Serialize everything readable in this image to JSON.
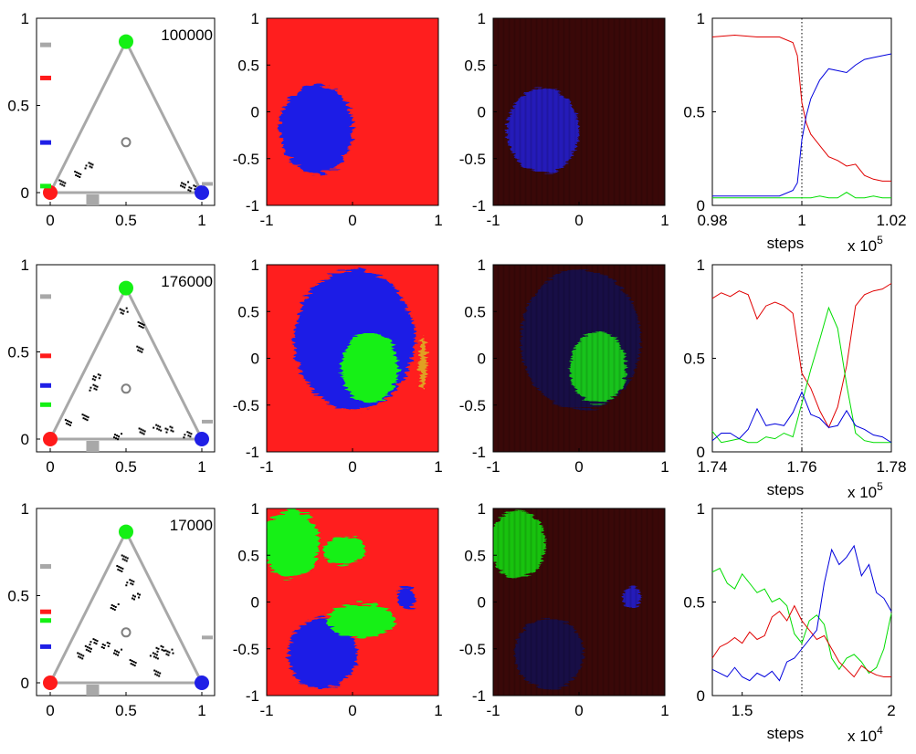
{
  "colors": {
    "red": "#ff2020",
    "green": "#22ee22",
    "blue": "#1a2bd8",
    "gray": "#a8a8a8",
    "black": "#000000"
  },
  "labels": {
    "steps": "steps"
  },
  "chart_data": [
    {
      "row": 0,
      "step_label": "100000",
      "simplex": {
        "type": "scatter",
        "xlim": [
          0,
          1
        ],
        "ylim": [
          0,
          1
        ],
        "xticks": [
          "0",
          "0.5",
          "1"
        ],
        "yticks": [
          "0",
          "0.5",
          "1"
        ],
        "vertices": [
          [
            0,
            0
          ],
          [
            1,
            0
          ],
          [
            0.5,
            0.866
          ]
        ],
        "centroid": [
          0.5,
          0.289
        ],
        "left_markers": {
          "gray": 0.85,
          "red": 0.66,
          "blue": 0.29,
          "green": 0.04
        },
        "right_marker_gray": 0.05,
        "bottom_marker_gray": 0.28,
        "clusters": [
          [
            0.08,
            0.06
          ],
          [
            0.17,
            0.11
          ],
          [
            0.25,
            0.16
          ],
          [
            0.93,
            0.03
          ],
          [
            0.88,
            0.05
          ]
        ]
      },
      "map_hard": {
        "type": "heatmap",
        "xlim": [
          -1,
          1
        ],
        "ylim": [
          -1,
          1
        ],
        "xticks": [
          "-1",
          "0",
          "1"
        ],
        "yticks": [
          "-1",
          "-0.5",
          "0",
          "0.5",
          "1"
        ],
        "background": "red",
        "blobs": [
          {
            "color": "blue",
            "cx": -0.42,
            "cy": -0.18,
            "rx": 0.42,
            "ry": 0.48
          }
        ]
      },
      "map_soft": {
        "type": "heatmap",
        "xlim": [
          -1,
          1
        ],
        "ylim": [
          -1,
          1
        ],
        "xticks": [
          "-1",
          "0",
          "1"
        ],
        "yticks": [
          "-1",
          "-0.5",
          "0",
          "0.5",
          "1"
        ],
        "background": "dark red",
        "blobs": [
          {
            "color": "blue",
            "cx": -0.42,
            "cy": -0.2,
            "rx": 0.42,
            "ry": 0.45
          }
        ]
      },
      "timeseries": {
        "type": "line",
        "xlim": [
          0.98,
          1.02
        ],
        "ylim": [
          0,
          1
        ],
        "xticks": [
          "0.98",
          "1",
          "1.02"
        ],
        "yticks": [
          "0",
          "0.5",
          "1"
        ],
        "xlabel": "steps",
        "xscale_exponent": "5",
        "vline": 1.0,
        "x": [
          0.98,
          0.985,
          0.99,
          0.995,
          0.998,
          0.999,
          1.0,
          1.001,
          1.002,
          1.004,
          1.006,
          1.008,
          1.01,
          1.012,
          1.014,
          1.016,
          1.018,
          1.02
        ],
        "series": [
          {
            "name": "red",
            "values": [
              0.9,
              0.91,
              0.9,
              0.9,
              0.87,
              0.8,
              0.55,
              0.44,
              0.38,
              0.32,
              0.26,
              0.24,
              0.21,
              0.22,
              0.16,
              0.14,
              0.13,
              0.13
            ]
          },
          {
            "name": "green",
            "values": [
              0.04,
              0.04,
              0.04,
              0.04,
              0.04,
              0.04,
              0.04,
              0.04,
              0.04,
              0.05,
              0.04,
              0.04,
              0.07,
              0.04,
              0.04,
              0.05,
              0.04,
              0.04
            ]
          },
          {
            "name": "blue",
            "values": [
              0.05,
              0.05,
              0.05,
              0.05,
              0.08,
              0.12,
              0.35,
              0.48,
              0.57,
              0.67,
              0.73,
              0.72,
              0.71,
              0.75,
              0.78,
              0.79,
              0.8,
              0.81
            ]
          }
        ]
      }
    },
    {
      "row": 1,
      "step_label": "176000",
      "simplex": {
        "type": "scatter",
        "xlim": [
          0,
          1
        ],
        "ylim": [
          0,
          1
        ],
        "xticks": [
          "0",
          "0.5",
          "1"
        ],
        "yticks": [
          "0",
          "0.5",
          "1"
        ],
        "vertices": [
          [
            0,
            0
          ],
          [
            1,
            0
          ],
          [
            0.5,
            0.866
          ]
        ],
        "centroid": [
          0.5,
          0.289
        ],
        "left_markers": {
          "gray": 0.82,
          "red": 0.48,
          "blue": 0.31,
          "green": 0.2
        },
        "right_marker_gray": 0.1,
        "bottom_marker_gray": 0.28,
        "clusters": [
          [
            0.12,
            0.1
          ],
          [
            0.22,
            0.13
          ],
          [
            0.28,
            0.3
          ],
          [
            0.3,
            0.36
          ],
          [
            0.44,
            0.02
          ],
          [
            0.6,
            0.05
          ],
          [
            0.7,
            0.07
          ],
          [
            0.78,
            0.06
          ],
          [
            0.48,
            0.74
          ],
          [
            0.6,
            0.66
          ],
          [
            0.58,
            0.52
          ],
          [
            0.9,
            0.03
          ]
        ]
      },
      "map_hard": {
        "type": "heatmap",
        "xlim": [
          -1,
          1
        ],
        "ylim": [
          -1,
          1
        ],
        "xticks": [
          "-1",
          "0",
          "1"
        ],
        "yticks": [
          "-1",
          "-0.5",
          "0",
          "0.5",
          "1"
        ],
        "background": "red",
        "blobs": [
          {
            "color": "blue",
            "cx": 0.02,
            "cy": 0.2,
            "rx": 0.7,
            "ry": 0.75
          },
          {
            "color": "green",
            "cx": 0.2,
            "cy": -0.1,
            "rx": 0.33,
            "ry": 0.38
          },
          {
            "color": "orange",
            "cx": 0.82,
            "cy": -0.05,
            "rx": 0.04,
            "ry": 0.28
          }
        ]
      },
      "map_soft": {
        "type": "heatmap",
        "xlim": [
          -1,
          1
        ],
        "ylim": [
          -1,
          1
        ],
        "xticks": [
          "-1",
          "0",
          "1"
        ],
        "yticks": [
          "-1",
          "-0.5",
          "0",
          "0.5",
          "1"
        ],
        "background": "dark red",
        "blobs": [
          {
            "color": "dark blue",
            "cx": 0.02,
            "cy": 0.2,
            "rx": 0.7,
            "ry": 0.75
          },
          {
            "color": "green",
            "cx": 0.22,
            "cy": -0.1,
            "rx": 0.33,
            "ry": 0.38
          }
        ]
      },
      "timeseries": {
        "type": "line",
        "xlim": [
          1.74,
          1.78
        ],
        "ylim": [
          0,
          1
        ],
        "xticks": [
          "1.74",
          "1.76",
          "1.78"
        ],
        "yticks": [
          "0",
          "0.5",
          "1"
        ],
        "xlabel": "steps",
        "xscale_exponent": "5",
        "vline": 1.76,
        "x": [
          1.74,
          1.742,
          1.744,
          1.746,
          1.748,
          1.75,
          1.752,
          1.754,
          1.756,
          1.758,
          1.76,
          1.762,
          1.764,
          1.766,
          1.768,
          1.77,
          1.772,
          1.774,
          1.776,
          1.778,
          1.78
        ],
        "series": [
          {
            "name": "red",
            "values": [
              0.82,
              0.85,
              0.83,
              0.86,
              0.84,
              0.71,
              0.78,
              0.8,
              0.78,
              0.74,
              0.42,
              0.34,
              0.22,
              0.13,
              0.24,
              0.46,
              0.78,
              0.84,
              0.86,
              0.87,
              0.9
            ]
          },
          {
            "name": "green",
            "values": [
              0.11,
              0.05,
              0.06,
              0.07,
              0.05,
              0.05,
              0.08,
              0.07,
              0.1,
              0.08,
              0.26,
              0.44,
              0.6,
              0.77,
              0.66,
              0.36,
              0.1,
              0.06,
              0.05,
              0.05,
              0.05
            ]
          },
          {
            "name": "blue",
            "values": [
              0.06,
              0.1,
              0.1,
              0.07,
              0.12,
              0.23,
              0.14,
              0.15,
              0.14,
              0.21,
              0.32,
              0.2,
              0.18,
              0.13,
              0.14,
              0.22,
              0.14,
              0.12,
              0.09,
              0.08,
              0.05
            ]
          }
        ]
      }
    },
    {
      "row": 2,
      "step_label": "17000",
      "simplex": {
        "type": "scatter",
        "xlim": [
          0,
          1
        ],
        "ylim": [
          0,
          1
        ],
        "xticks": [
          "0",
          "0.5",
          "1"
        ],
        "yticks": [
          "0",
          "0.5",
          "1"
        ],
        "vertices": [
          [
            0,
            0
          ],
          [
            1,
            0
          ],
          [
            0.5,
            0.866
          ]
        ],
        "centroid": [
          0.5,
          0.289
        ],
        "left_markers": {
          "gray": 0.67,
          "red": 0.41,
          "green": 0.36,
          "blue": 0.21
        },
        "right_marker_gray": 0.26,
        "bottom_marker_gray": 0.28,
        "clusters": [
          [
            0.2,
            0.16
          ],
          [
            0.24,
            0.2
          ],
          [
            0.28,
            0.24
          ],
          [
            0.36,
            0.22
          ],
          [
            0.44,
            0.18
          ],
          [
            0.54,
            0.12
          ],
          [
            0.68,
            0.16
          ],
          [
            0.72,
            0.2
          ],
          [
            0.78,
            0.18
          ],
          [
            0.46,
            0.66
          ],
          [
            0.48,
            0.72
          ],
          [
            0.52,
            0.58
          ],
          [
            0.56,
            0.5
          ],
          [
            0.42,
            0.44
          ],
          [
            0.7,
            0.06
          ]
        ]
      },
      "map_hard": {
        "type": "heatmap",
        "xlim": [
          -1,
          1
        ],
        "ylim": [
          -1,
          1
        ],
        "xticks": [
          "-1",
          "0",
          "1"
        ],
        "yticks": [
          "-1",
          "-0.5",
          "0",
          "0.5",
          "1"
        ],
        "background": "red",
        "blobs": [
          {
            "color": "green",
            "cx": -0.72,
            "cy": 0.62,
            "rx": 0.33,
            "ry": 0.36
          },
          {
            "color": "blue",
            "cx": -0.35,
            "cy": -0.55,
            "rx": 0.4,
            "ry": 0.38
          },
          {
            "color": "green",
            "cx": 0.1,
            "cy": -0.2,
            "rx": 0.4,
            "ry": 0.18
          },
          {
            "color": "blue",
            "cx": 0.62,
            "cy": 0.05,
            "rx": 0.1,
            "ry": 0.12
          },
          {
            "color": "green",
            "cx": -0.1,
            "cy": 0.55,
            "rx": 0.25,
            "ry": 0.15
          }
        ]
      },
      "map_soft": {
        "type": "heatmap",
        "xlim": [
          -1,
          1
        ],
        "ylim": [
          -1,
          1
        ],
        "xticks": [
          "-1",
          "0",
          "1"
        ],
        "yticks": [
          "-1",
          "-0.5",
          "0",
          "0.5",
          "1"
        ],
        "background": "dark red",
        "blobs": [
          {
            "color": "green",
            "cx": -0.72,
            "cy": 0.62,
            "rx": 0.33,
            "ry": 0.36
          },
          {
            "color": "dark blue",
            "cx": -0.35,
            "cy": -0.55,
            "rx": 0.4,
            "ry": 0.38
          },
          {
            "color": "blue",
            "cx": 0.62,
            "cy": 0.05,
            "rx": 0.1,
            "ry": 0.12
          }
        ]
      },
      "timeseries": {
        "type": "line",
        "xlim": [
          1.4,
          2.0
        ],
        "ylim": [
          0,
          1
        ],
        "xticks": [
          "1.5",
          "2"
        ],
        "tick_values": [
          1.5,
          2.0
        ],
        "yticks": [
          "0",
          "0.5",
          "1"
        ],
        "xlabel": "steps",
        "xscale_exponent": "4",
        "vline": 1.7,
        "x": [
          1.4,
          1.425,
          1.45,
          1.475,
          1.5,
          1.525,
          1.55,
          1.575,
          1.6,
          1.625,
          1.65,
          1.675,
          1.7,
          1.725,
          1.75,
          1.775,
          1.8,
          1.825,
          1.85,
          1.875,
          1.9,
          1.925,
          1.95,
          1.975,
          2.0
        ],
        "series": [
          {
            "name": "green",
            "values": [
              0.66,
              0.68,
              0.6,
              0.57,
              0.65,
              0.6,
              0.55,
              0.57,
              0.5,
              0.52,
              0.48,
              0.33,
              0.28,
              0.4,
              0.43,
              0.38,
              0.2,
              0.14,
              0.2,
              0.22,
              0.18,
              0.12,
              0.15,
              0.25,
              0.44
            ]
          },
          {
            "name": "red",
            "values": [
              0.2,
              0.26,
              0.28,
              0.31,
              0.28,
              0.34,
              0.3,
              0.32,
              0.42,
              0.45,
              0.4,
              0.48,
              0.4,
              0.35,
              0.3,
              0.32,
              0.25,
              0.18,
              0.14,
              0.1,
              0.16,
              0.13,
              0.11,
              0.1,
              0.1
            ]
          },
          {
            "name": "blue",
            "values": [
              0.14,
              0.12,
              0.1,
              0.15,
              0.1,
              0.08,
              0.12,
              0.1,
              0.13,
              0.08,
              0.18,
              0.2,
              0.25,
              0.3,
              0.35,
              0.6,
              0.78,
              0.7,
              0.74,
              0.8,
              0.64,
              0.7,
              0.55,
              0.52,
              0.45
            ]
          }
        ]
      }
    }
  ]
}
